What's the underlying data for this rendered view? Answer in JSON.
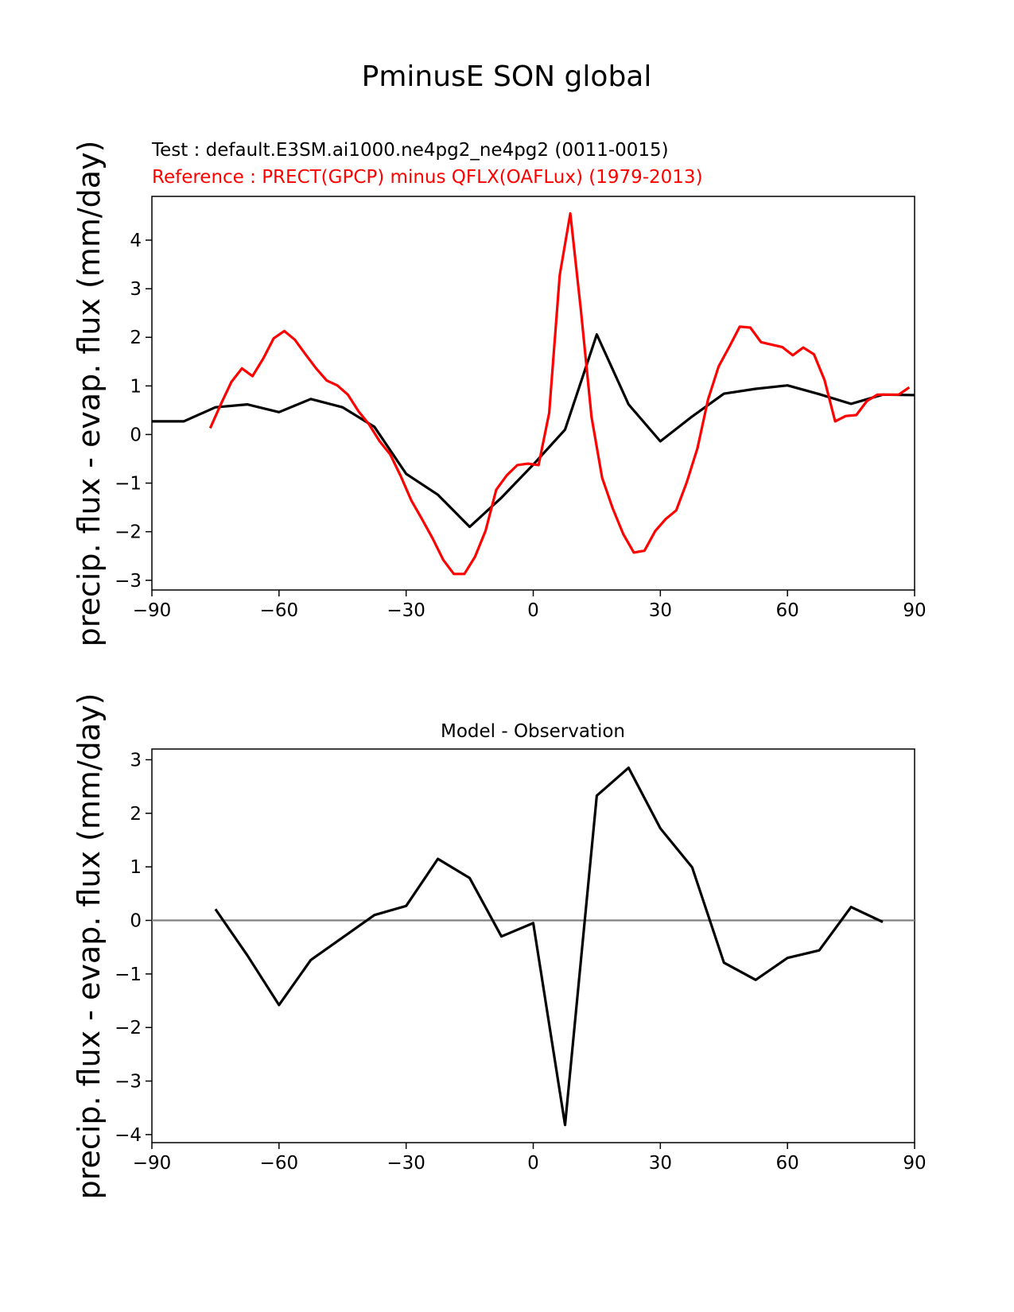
{
  "title": "PminusE SON global",
  "colors": {
    "test": "#000000",
    "reference": "#ff0000",
    "zero_line": "#808080"
  },
  "chart_data": [
    {
      "type": "line",
      "test_label": "Test : default.E3SM.ai1000.ne4pg2_ne4pg2 (0011-0015)",
      "reference_label": "Reference : PRECT(GPCP) minus QFLX(OAFLux) (1979-2013)",
      "ylabel": "precip. flux - evap. flux (mm/day)",
      "xlim": [
        -90,
        90
      ],
      "ylim": [
        -3.2,
        4.9
      ],
      "xticks": [
        "−90",
        "−60",
        "−30",
        "0",
        "30",
        "60",
        "90"
      ],
      "xtick_values": [
        -90,
        -60,
        -30,
        0,
        30,
        60,
        90
      ],
      "yticks": [
        "−3",
        "−2",
        "−1",
        "0",
        "1",
        "2",
        "3",
        "4"
      ],
      "ytick_values": [
        -3,
        -2,
        -1,
        0,
        1,
        2,
        3,
        4
      ],
      "series": [
        {
          "role": "test",
          "x": [
            -90,
            -82.5,
            -75,
            -67.5,
            -60,
            -52.5,
            -45,
            -37.5,
            -30,
            -22.5,
            -15,
            -7.5,
            0,
            7.5,
            15,
            22.5,
            30,
            37.5,
            45,
            52.5,
            60,
            67.5,
            75,
            82.5,
            90
          ],
          "y": [
            0.27,
            0.27,
            0.56,
            0.62,
            0.46,
            0.73,
            0.56,
            0.16,
            -0.81,
            -1.24,
            -1.9,
            -1.3,
            -0.62,
            0.1,
            2.06,
            0.62,
            -0.14,
            0.37,
            0.84,
            0.94,
            1.01,
            0.83,
            0.63,
            0.82,
            0.81
          ]
        },
        {
          "role": "reference",
          "x": [
            -76.25,
            -73.75,
            -71.25,
            -68.75,
            -66.25,
            -63.75,
            -61.25,
            -58.75,
            -56.25,
            -53.75,
            -51.25,
            -48.75,
            -46.25,
            -43.75,
            -41.25,
            -38.75,
            -36.25,
            -33.75,
            -31.25,
            -28.75,
            -26.25,
            -23.75,
            -21.25,
            -18.75,
            -16.25,
            -13.75,
            -11.25,
            -8.75,
            -6.25,
            -3.75,
            -1.25,
            1.25,
            3.75,
            6.25,
            8.75,
            11.25,
            13.75,
            16.25,
            18.75,
            21.25,
            23.75,
            26.25,
            28.75,
            31.25,
            33.75,
            36.25,
            38.75,
            41.25,
            43.75,
            46.25,
            48.75,
            51.25,
            53.75,
            56.25,
            58.75,
            61.25,
            63.75,
            66.25,
            68.75,
            71.25,
            73.75,
            76.25,
            78.75,
            81.25,
            83.75,
            86.25,
            88.75
          ],
          "y": [
            0.13,
            0.62,
            1.08,
            1.36,
            1.2,
            1.56,
            1.98,
            2.13,
            1.95,
            1.65,
            1.36,
            1.11,
            1.01,
            0.82,
            0.48,
            0.21,
            -0.14,
            -0.41,
            -0.86,
            -1.36,
            -1.74,
            -2.14,
            -2.58,
            -2.87,
            -2.87,
            -2.52,
            -1.98,
            -1.14,
            -0.84,
            -0.63,
            -0.6,
            -0.63,
            0.44,
            3.28,
            4.55,
            2.56,
            0.36,
            -0.89,
            -1.52,
            -2.05,
            -2.43,
            -2.39,
            -1.99,
            -1.74,
            -1.56,
            -0.98,
            -0.28,
            0.72,
            1.4,
            1.8,
            2.22,
            2.2,
            1.9,
            1.85,
            1.8,
            1.63,
            1.79,
            1.65,
            1.12,
            0.27,
            0.38,
            0.4,
            0.69,
            0.82,
            0.82,
            0.82,
            0.97
          ]
        }
      ]
    },
    {
      "type": "line",
      "title": "Model - Observation",
      "ylabel": "precip. flux - evap. flux (mm/day)",
      "xlim": [
        -90,
        90
      ],
      "ylim": [
        -4.15,
        3.2
      ],
      "xticks": [
        "−90",
        "−60",
        "−30",
        "0",
        "30",
        "60",
        "90"
      ],
      "xtick_values": [
        -90,
        -60,
        -30,
        0,
        30,
        60,
        90
      ],
      "yticks": [
        "−4",
        "−3",
        "−2",
        "−1",
        "0",
        "1",
        "2",
        "3"
      ],
      "ytick_values": [
        -4,
        -3,
        -2,
        -1,
        0,
        1,
        2,
        3
      ],
      "zero_line": 0,
      "series": [
        {
          "role": "difference",
          "x": [
            -75,
            -67.5,
            -60,
            -52.5,
            -45,
            -37.5,
            -30,
            -22.5,
            -15,
            -7.5,
            0,
            7.5,
            15,
            22.5,
            30,
            37.5,
            45,
            52.5,
            60,
            67.5,
            75,
            82.5
          ],
          "y": [
            0.21,
            -0.65,
            -1.58,
            -0.74,
            -0.32,
            0.1,
            0.27,
            1.15,
            0.79,
            -0.3,
            -0.05,
            -3.82,
            2.33,
            2.85,
            1.72,
            0.99,
            -0.79,
            -1.11,
            -0.7,
            -0.56,
            0.25,
            -0.03
          ]
        }
      ]
    }
  ]
}
